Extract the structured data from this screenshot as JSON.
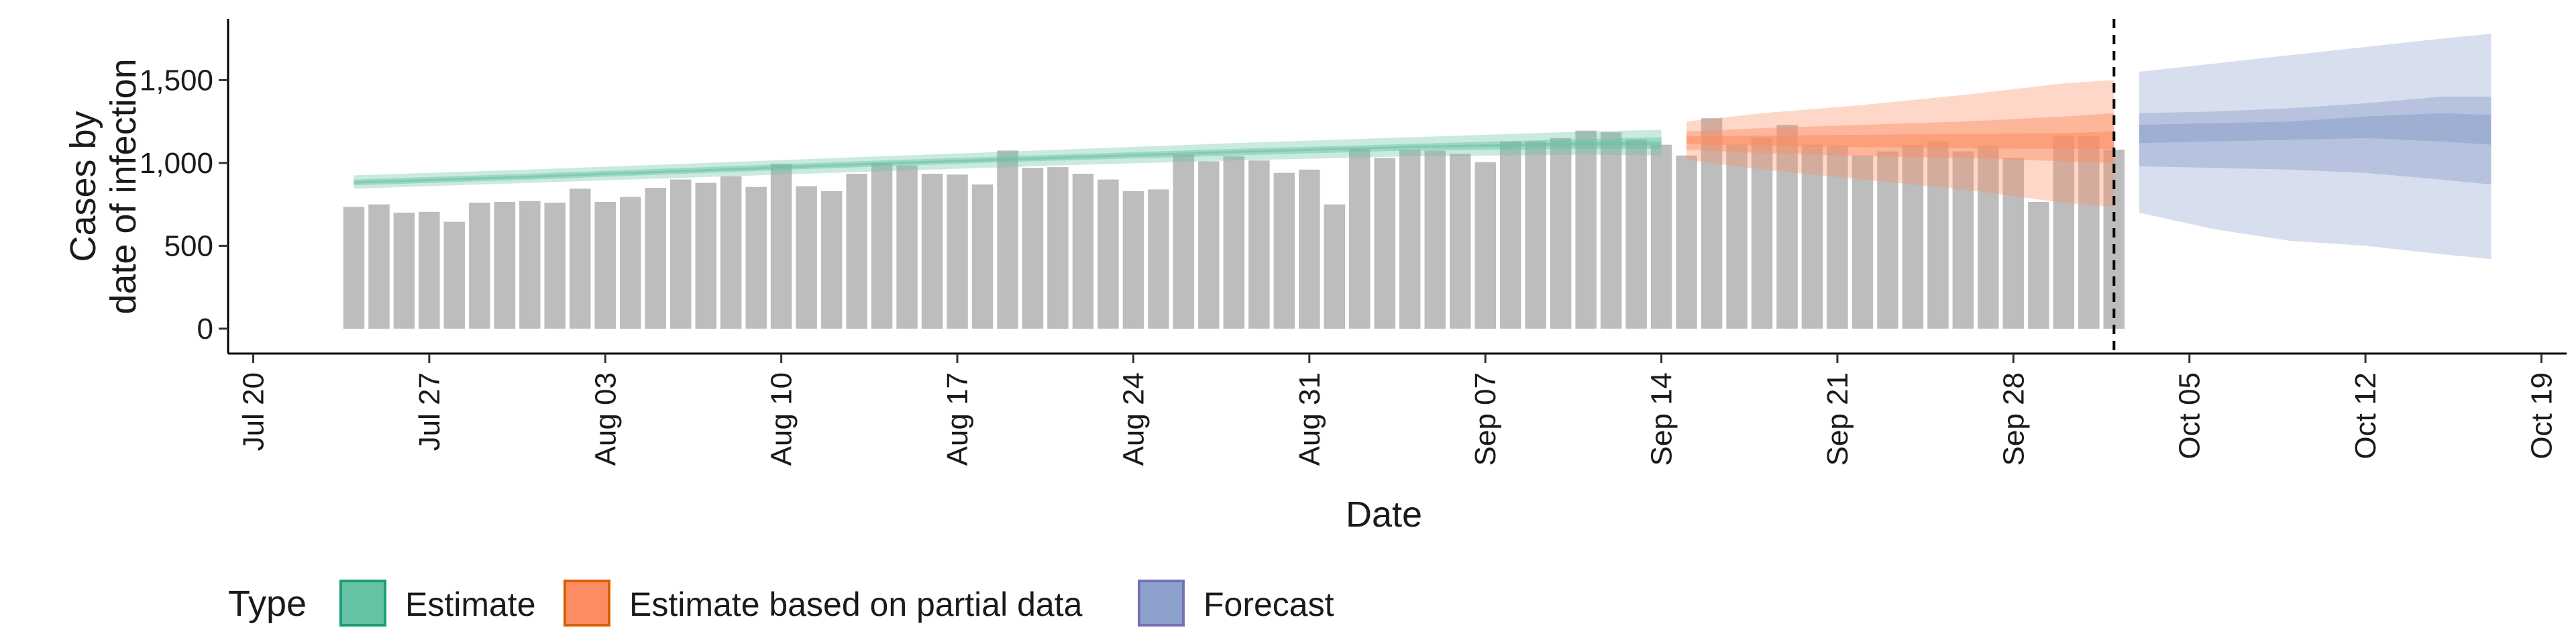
{
  "chart_data": {
    "type": "bar",
    "xlabel": "Date",
    "ylabel_lines": [
      "Cases by",
      "date of infection"
    ],
    "xlim": [
      "2020-07-19",
      "2020-10-20"
    ],
    "ylim": [
      -150,
      1870
    ],
    "y_ticks": [
      {
        "value": 0,
        "label": "0"
      },
      {
        "value": 500,
        "label": "500"
      },
      {
        "value": 1000,
        "label": "1,000"
      },
      {
        "value": 1500,
        "label": "1,500"
      }
    ],
    "x_ticks": [
      {
        "date": "2020-07-20",
        "label": "Jul 20"
      },
      {
        "date": "2020-07-27",
        "label": "Jul 27"
      },
      {
        "date": "2020-08-03",
        "label": "Aug 03"
      },
      {
        "date": "2020-08-10",
        "label": "Aug 10"
      },
      {
        "date": "2020-08-17",
        "label": "Aug 17"
      },
      {
        "date": "2020-08-24",
        "label": "Aug 24"
      },
      {
        "date": "2020-08-31",
        "label": "Aug 31"
      },
      {
        "date": "2020-09-07",
        "label": "Sep 07"
      },
      {
        "date": "2020-09-14",
        "label": "Sep 14"
      },
      {
        "date": "2020-09-21",
        "label": "Sep 21"
      },
      {
        "date": "2020-09-28",
        "label": "Sep 28"
      },
      {
        "date": "2020-10-05",
        "label": "Oct 05"
      },
      {
        "date": "2020-10-12",
        "label": "Oct 12"
      },
      {
        "date": "2020-10-19",
        "label": "Oct 19"
      }
    ],
    "grid": false,
    "reported_cases": {
      "start_date": "2020-07-24",
      "values": [
        735,
        750,
        700,
        705,
        645,
        760,
        765,
        770,
        760,
        845,
        765,
        795,
        850,
        900,
        880,
        920,
        855,
        995,
        860,
        830,
        935,
        1000,
        985,
        935,
        930,
        870,
        1075,
        970,
        975,
        935,
        900,
        830,
        840,
        1050,
        1010,
        1040,
        1015,
        940,
        960,
        750,
        1085,
        1030,
        1080,
        1075,
        1055,
        1005,
        1130,
        1130,
        1150,
        1195,
        1185,
        1140,
        1110,
        1045,
        1270,
        1110,
        1150,
        1230,
        1110,
        1105,
        1045,
        1070,
        1110,
        1130,
        1070,
        1100,
        1030,
        765,
        1160,
        1160,
        1080
      ]
    },
    "forecast_start": "2020-10-02",
    "bands": [
      {
        "type": "Estimate",
        "color": "#66c2a5",
        "x": [
          "2020-07-24",
          "2020-07-31",
          "2020-08-07",
          "2020-08-14",
          "2020-08-21",
          "2020-08-28",
          "2020-09-04",
          "2020-09-11",
          "2020-09-14"
        ],
        "lower90": [
          845,
          880,
          915,
          950,
          985,
          1015,
          1040,
          1050,
          1045
        ],
        "upper90": [
          925,
          960,
          1000,
          1040,
          1080,
          1120,
          1155,
          1190,
          1200
        ],
        "lower50": [
          865,
          900,
          940,
          980,
          1015,
          1045,
          1075,
          1085,
          1085
        ],
        "upper50": [
          900,
          935,
          975,
          1015,
          1050,
          1085,
          1115,
          1145,
          1155
        ],
        "lower20": [
          875,
          910,
          950,
          990,
          1025,
          1060,
          1090,
          1105,
          1105
        ],
        "upper20": [
          888,
          923,
          963,
          1003,
          1038,
          1073,
          1103,
          1125,
          1130
        ],
        "median": [
          880,
          915,
          955,
          995,
          1030,
          1065,
          1095,
          1115,
          1120
        ]
      },
      {
        "type": "Estimate based on partial data",
        "color": "#fc8d62",
        "x": [
          "2020-09-15",
          "2020-09-18",
          "2020-09-22",
          "2020-09-26",
          "2020-09-30",
          "2020-10-02"
        ],
        "lower90": [
          1020,
          960,
          900,
          840,
          760,
          735
        ],
        "upper90": [
          1250,
          1300,
          1350,
          1410,
          1480,
          1500
        ],
        "lower50": [
          1080,
          1060,
          1040,
          1030,
          1010,
          1000
        ],
        "upper50": [
          1190,
          1210,
          1230,
          1250,
          1280,
          1300
        ],
        "lower20": [
          1115,
          1105,
          1095,
          1090,
          1085,
          1085
        ],
        "upper20": [
          1160,
          1165,
          1170,
          1175,
          1180,
          1190
        ],
        "median": [
          1140,
          1140,
          1140,
          1140,
          1140,
          1140
        ]
      },
      {
        "type": "Forecast",
        "color": "#8da0cb",
        "x": [
          "2020-10-03",
          "2020-10-06",
          "2020-10-09",
          "2020-10-12",
          "2020-10-15",
          "2020-10-17"
        ],
        "lower90": [
          700,
          600,
          530,
          500,
          450,
          420
        ],
        "upper90": [
          1550,
          1600,
          1650,
          1700,
          1750,
          1780
        ],
        "lower50": [
          980,
          970,
          960,
          940,
          900,
          870
        ],
        "upper50": [
          1300,
          1310,
          1330,
          1360,
          1400,
          1400
        ],
        "lower20": [
          1120,
          1130,
          1140,
          1150,
          1130,
          1110
        ],
        "upper20": [
          1230,
          1240,
          1250,
          1280,
          1300,
          1290
        ],
        "median": [
          1175,
          1185,
          1195,
          1215,
          1215,
          1200
        ]
      }
    ],
    "legend": {
      "title": "Type",
      "position": "bottom",
      "entries": [
        {
          "label": "Estimate",
          "color": "#66c2a5",
          "border": "#1b9e77"
        },
        {
          "label": "Estimate based on partial data",
          "color": "#fc8d62",
          "border": "#d95f02"
        },
        {
          "label": "Forecast",
          "color": "#8da0cb",
          "border": "#7570b3"
        }
      ]
    },
    "bar_color": "#bdbdbd"
  }
}
